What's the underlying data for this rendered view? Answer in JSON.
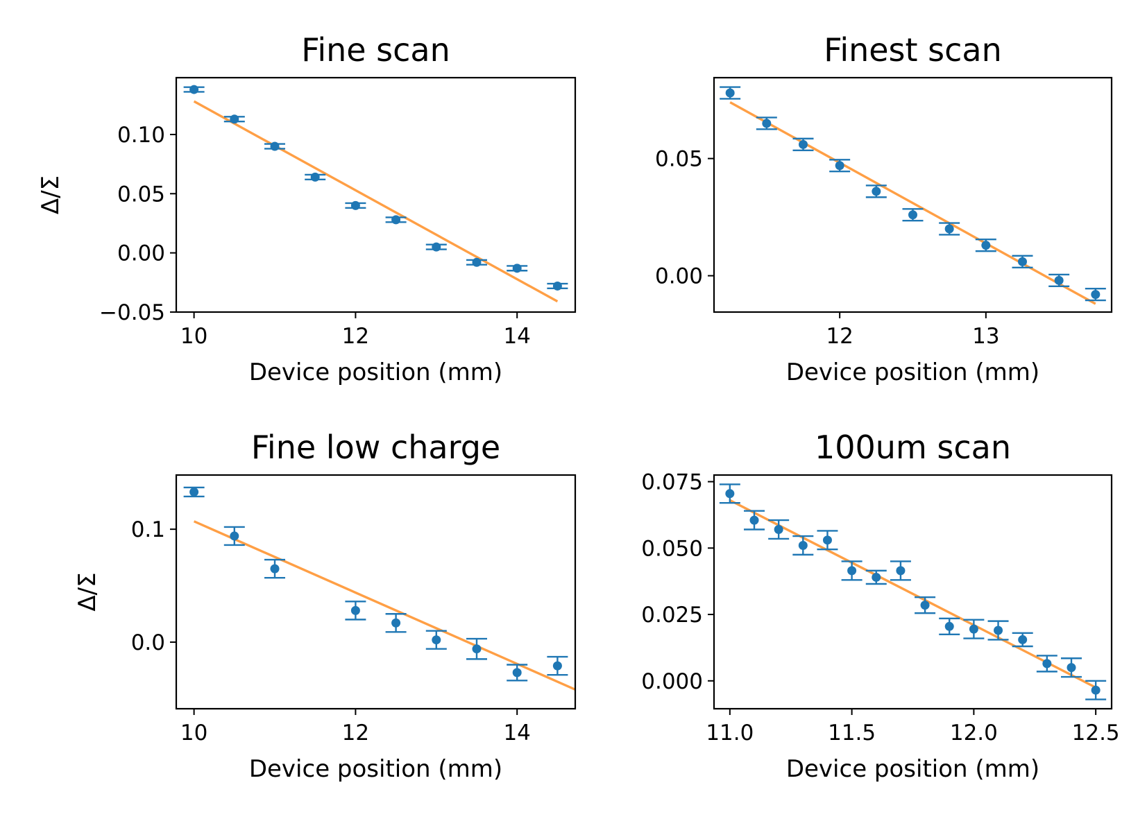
{
  "colors": {
    "points": "#1f77b4",
    "fit": "#ff9f45",
    "axes": "#000000",
    "background": "#ffffff"
  },
  "chart_data": [
    {
      "type": "scatter",
      "title": "Fine scan",
      "xlabel": "Device position (mm)",
      "ylabel": "Δ/Σ",
      "xlim": [
        9.78,
        14.72
      ],
      "ylim": [
        -0.05,
        0.148
      ],
      "xticks": [
        10,
        12,
        14
      ],
      "xtick_labels": [
        "10",
        "12",
        "14"
      ],
      "yticks": [
        -0.05,
        0.0,
        0.05,
        0.1
      ],
      "ytick_labels": [
        "−0.05",
        "0.00",
        "0.05",
        "0.10"
      ],
      "grid": false,
      "series": [
        {
          "kind": "errorbar",
          "x": [
            10.0,
            10.5,
            11.0,
            11.5,
            12.0,
            12.5,
            13.0,
            13.5,
            14.0,
            14.5
          ],
          "y": [
            0.138,
            0.113,
            0.09,
            0.064,
            0.04,
            0.028,
            0.005,
            -0.008,
            -0.013,
            -0.028
          ],
          "yerr": [
            0.002,
            0.002,
            0.002,
            0.002,
            0.002,
            0.002,
            0.002,
            0.002,
            0.002,
            0.002
          ]
        },
        {
          "kind": "fit-line",
          "x": [
            10.0,
            14.5
          ],
          "y": [
            0.128,
            -0.041
          ]
        }
      ]
    },
    {
      "type": "scatter",
      "title": "Finest scan",
      "xlabel": "Device position (mm)",
      "ylabel": "",
      "xlim": [
        11.14,
        13.86
      ],
      "ylim": [
        -0.0155,
        0.0845
      ],
      "xticks": [
        12,
        13
      ],
      "xtick_labels": [
        "12",
        "13"
      ],
      "yticks": [
        0.0,
        0.05
      ],
      "ytick_labels": [
        "0.00",
        "0.05"
      ],
      "grid": false,
      "series": [
        {
          "kind": "errorbar",
          "x": [
            11.25,
            11.5,
            11.75,
            12.0,
            12.25,
            12.5,
            12.75,
            13.0,
            13.25,
            13.5,
            13.75
          ],
          "y": [
            0.078,
            0.065,
            0.056,
            0.047,
            0.036,
            0.026,
            0.02,
            0.013,
            0.006,
            -0.002,
            -0.008
          ],
          "yerr": [
            0.0025,
            0.0025,
            0.0025,
            0.0025,
            0.0025,
            0.0025,
            0.0025,
            0.0025,
            0.0025,
            0.0025,
            0.0025
          ]
        },
        {
          "kind": "fit-line",
          "x": [
            11.25,
            13.75
          ],
          "y": [
            0.074,
            -0.012
          ]
        }
      ]
    },
    {
      "type": "scatter",
      "title": "Fine low charge",
      "xlabel": "Device position (mm)",
      "ylabel": "Δ/Σ",
      "xlim": [
        9.78,
        14.72
      ],
      "ylim": [
        -0.059,
        0.148
      ],
      "xticks": [
        10,
        12,
        14
      ],
      "xtick_labels": [
        "10",
        "12",
        "14"
      ],
      "yticks": [
        0.0,
        0.1
      ],
      "ytick_labels": [
        "0.0",
        "0.1"
      ],
      "grid": false,
      "series": [
        {
          "kind": "errorbar",
          "x": [
            10.0,
            10.5,
            11.0,
            11.5,
            12.0,
            12.5,
            13.0,
            13.5,
            14.0,
            14.5
          ],
          "y": [
            0.133,
            0.094,
            0.065,
            null,
            0.028,
            0.017,
            0.002,
            -0.006,
            -0.027,
            -0.021
          ],
          "yerr": [
            0.004,
            0.008,
            0.008,
            null,
            0.008,
            0.008,
            0.008,
            0.009,
            0.007,
            0.008
          ]
        },
        {
          "kind": "fit-line",
          "x": [
            10.0,
            14.72
          ],
          "y": [
            0.107,
            -0.042
          ]
        }
      ]
    },
    {
      "type": "scatter",
      "title": "100um scan",
      "xlabel": "Device position (mm)",
      "ylabel": "",
      "xlim": [
        10.935,
        12.565
      ],
      "ylim": [
        -0.0105,
        0.0775
      ],
      "xticks": [
        11.0,
        11.5,
        12.0,
        12.5
      ],
      "xtick_labels": [
        "11.0",
        "11.5",
        "12.0",
        "12.5"
      ],
      "yticks": [
        0.0,
        0.025,
        0.05,
        0.075
      ],
      "ytick_labels": [
        "0.000",
        "0.025",
        "0.050",
        "0.075"
      ],
      "grid": false,
      "series": [
        {
          "kind": "errorbar",
          "x": [
            11.0,
            11.1,
            11.2,
            11.3,
            11.4,
            11.5,
            11.6,
            11.7,
            11.8,
            11.9,
            12.0,
            12.1,
            12.2,
            12.3,
            12.4,
            12.5
          ],
          "y": [
            0.0705,
            0.0605,
            0.057,
            0.051,
            0.053,
            0.0415,
            0.039,
            0.0415,
            0.0285,
            0.0205,
            0.0195,
            0.019,
            0.0155,
            0.0065,
            0.005,
            -0.0035
          ],
          "yerr": [
            0.0035,
            0.0035,
            0.0035,
            0.0035,
            0.0035,
            0.0035,
            0.0025,
            0.0035,
            0.003,
            0.003,
            0.0035,
            0.0035,
            0.0025,
            0.003,
            0.0035,
            0.0035
          ]
        },
        {
          "kind": "fit-line",
          "x": [
            11.0,
            12.5
          ],
          "y": [
            0.068,
            -0.0025
          ]
        }
      ]
    }
  ]
}
